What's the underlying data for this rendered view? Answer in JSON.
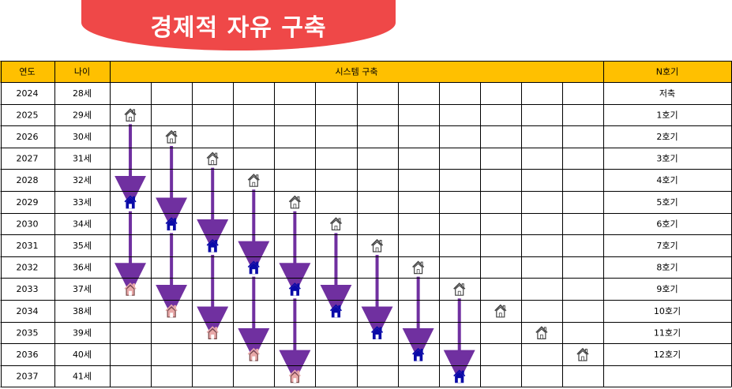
{
  "title": "경제적 자유 구축",
  "colors": {
    "banner": "#ef4848",
    "header_bg": "#ffc000",
    "grid_line": "#000000",
    "arrow": "#7030a0",
    "house_outline": "#444444",
    "house_blue": "#0a0aa8",
    "house_pink": "#e8a8a8"
  },
  "headers": {
    "year": "연도",
    "age": "나이",
    "system": "시스템 구축",
    "nth": "N호기"
  },
  "rows": [
    {
      "year": "2024",
      "age": "28세",
      "nth": "저축"
    },
    {
      "year": "2025",
      "age": "29세",
      "nth": "1호기"
    },
    {
      "year": "2026",
      "age": "30세",
      "nth": "2호기"
    },
    {
      "year": "2027",
      "age": "31세",
      "nth": "3호기"
    },
    {
      "year": "2028",
      "age": "32세",
      "nth": "4호기"
    },
    {
      "year": "2029",
      "age": "33세",
      "nth": "5호기"
    },
    {
      "year": "2030",
      "age": "34세",
      "nth": "6호기"
    },
    {
      "year": "2031",
      "age": "35세",
      "nth": "7호기"
    },
    {
      "year": "2032",
      "age": "36세",
      "nth": "8호기"
    },
    {
      "year": "2033",
      "age": "37세",
      "nth": "9호기"
    },
    {
      "year": "2034",
      "age": "38세",
      "nth": "10호기"
    },
    {
      "year": "2035",
      "age": "39세",
      "nth": "11호기"
    },
    {
      "year": "2036",
      "age": "40세",
      "nth": "12호기"
    },
    {
      "year": "2037",
      "age": "41세",
      "nth": ""
    }
  ],
  "icon": "house-icon",
  "system_columns": 12,
  "houses": [
    {
      "col": 1,
      "start_row": 1,
      "blue_row": 5,
      "pink_row": 9
    },
    {
      "col": 2,
      "start_row": 2,
      "blue_row": 6,
      "pink_row": 10
    },
    {
      "col": 3,
      "start_row": 3,
      "blue_row": 7,
      "pink_row": 11
    },
    {
      "col": 4,
      "start_row": 4,
      "blue_row": 8,
      "pink_row": 12
    },
    {
      "col": 5,
      "start_row": 5,
      "blue_row": 9,
      "pink_row": 13
    },
    {
      "col": 6,
      "start_row": 6,
      "blue_row": 10,
      "pink_row": null
    },
    {
      "col": 7,
      "start_row": 7,
      "blue_row": 11,
      "pink_row": null
    },
    {
      "col": 8,
      "start_row": 8,
      "blue_row": 12,
      "pink_row": null
    },
    {
      "col": 9,
      "start_row": 9,
      "blue_row": 13,
      "pink_row": null
    },
    {
      "col": 10,
      "start_row": 10,
      "blue_row": null,
      "pink_row": null
    },
    {
      "col": 11,
      "start_row": 11,
      "blue_row": null,
      "pink_row": null
    },
    {
      "col": 12,
      "start_row": 12,
      "blue_row": null,
      "pink_row": null
    }
  ]
}
